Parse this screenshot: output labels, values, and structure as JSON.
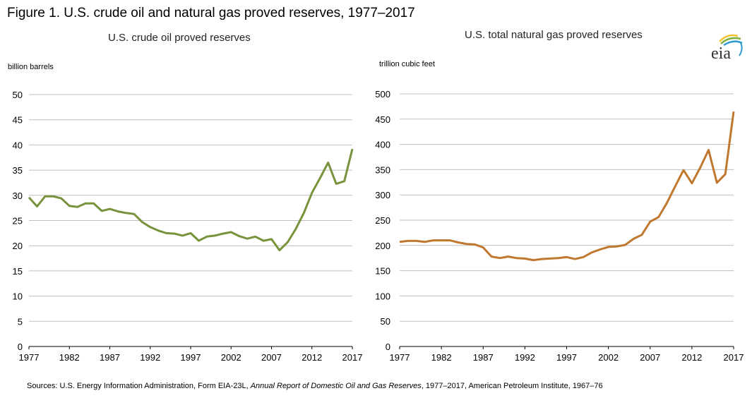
{
  "figure_title": "Figure 1. U.S. crude oil and natural  gas proved reserves, 1977–2017",
  "source": {
    "prefix": "Sources: U.S. Energy Information Administration, Form EIA-23L, ",
    "italic": "Annual Report of Domestic Oil and Gas Reserves",
    "suffix": ", 1977–2017, American Petroleum Institute, 1967–76"
  },
  "logo": {
    "text": "eia",
    "icon": "eia-logo-icon"
  },
  "chart_data": [
    {
      "type": "line",
      "title": "U.S. crude oil proved reserves",
      "ylabel": "billion barrels",
      "xlabel": "",
      "color": "#77933C",
      "ylim": [
        0,
        50
      ],
      "yticks": [
        0,
        5,
        10,
        15,
        20,
        25,
        30,
        35,
        40,
        45,
        50
      ],
      "xlim": [
        1977,
        2017
      ],
      "xticks": [
        1977,
        1982,
        1987,
        1992,
        1997,
        2002,
        2007,
        2012,
        2017
      ],
      "grid": true,
      "x": [
        1977,
        1978,
        1979,
        1980,
        1981,
        1982,
        1983,
        1984,
        1985,
        1986,
        1987,
        1988,
        1989,
        1990,
        1991,
        1992,
        1993,
        1994,
        1995,
        1996,
        1997,
        1998,
        1999,
        2000,
        2001,
        2002,
        2003,
        2004,
        2005,
        2006,
        2007,
        2008,
        2009,
        2010,
        2011,
        2012,
        2013,
        2014,
        2015,
        2016,
        2017
      ],
      "series": [
        {
          "name": "U.S. crude oil proved reserves",
          "values": [
            29.6,
            27.8,
            29.8,
            29.8,
            29.4,
            27.9,
            27.7,
            28.4,
            28.4,
            26.9,
            27.3,
            26.8,
            26.5,
            26.3,
            24.7,
            23.7,
            23.0,
            22.5,
            22.4,
            22.0,
            22.5,
            21.0,
            21.8,
            22.0,
            22.4,
            22.7,
            21.9,
            21.4,
            21.8,
            21.0,
            21.3,
            19.1,
            20.7,
            23.3,
            26.5,
            30.5,
            33.4,
            36.5,
            32.3,
            32.8,
            39.2
          ]
        }
      ]
    },
    {
      "type": "line",
      "title": "U.S. total natural  gas proved reserves",
      "ylabel": "trillion cubic feet",
      "xlabel": "",
      "color": "#C0782F",
      "ylim": [
        0,
        500
      ],
      "yticks": [
        0,
        50,
        100,
        150,
        200,
        250,
        300,
        350,
        400,
        450,
        500
      ],
      "xlim": [
        1977,
        2017
      ],
      "xticks": [
        1977,
        1982,
        1987,
        1992,
        1997,
        2002,
        2007,
        2012,
        2017
      ],
      "grid": true,
      "x": [
        1977,
        1978,
        1979,
        1980,
        1981,
        1982,
        1983,
        1984,
        1985,
        1986,
        1987,
        1988,
        1989,
        1990,
        1991,
        1992,
        1993,
        1994,
        1995,
        1996,
        1997,
        1998,
        1999,
        2000,
        2001,
        2002,
        2003,
        2004,
        2005,
        2006,
        2007,
        2008,
        2009,
        2010,
        2011,
        2012,
        2013,
        2014,
        2015,
        2016,
        2017
      ],
      "series": [
        {
          "name": "U.S. total natural gas proved reserves",
          "values": [
            207,
            209,
            209,
            207,
            210,
            210,
            210,
            206,
            203,
            202,
            196,
            178,
            175,
            178,
            175,
            174,
            171,
            173,
            174,
            175,
            177,
            173,
            177,
            186,
            192,
            197,
            198,
            201,
            213,
            221,
            247,
            256,
            284,
            317,
            349,
            323,
            354,
            389,
            324,
            341,
            465
          ]
        }
      ]
    }
  ]
}
